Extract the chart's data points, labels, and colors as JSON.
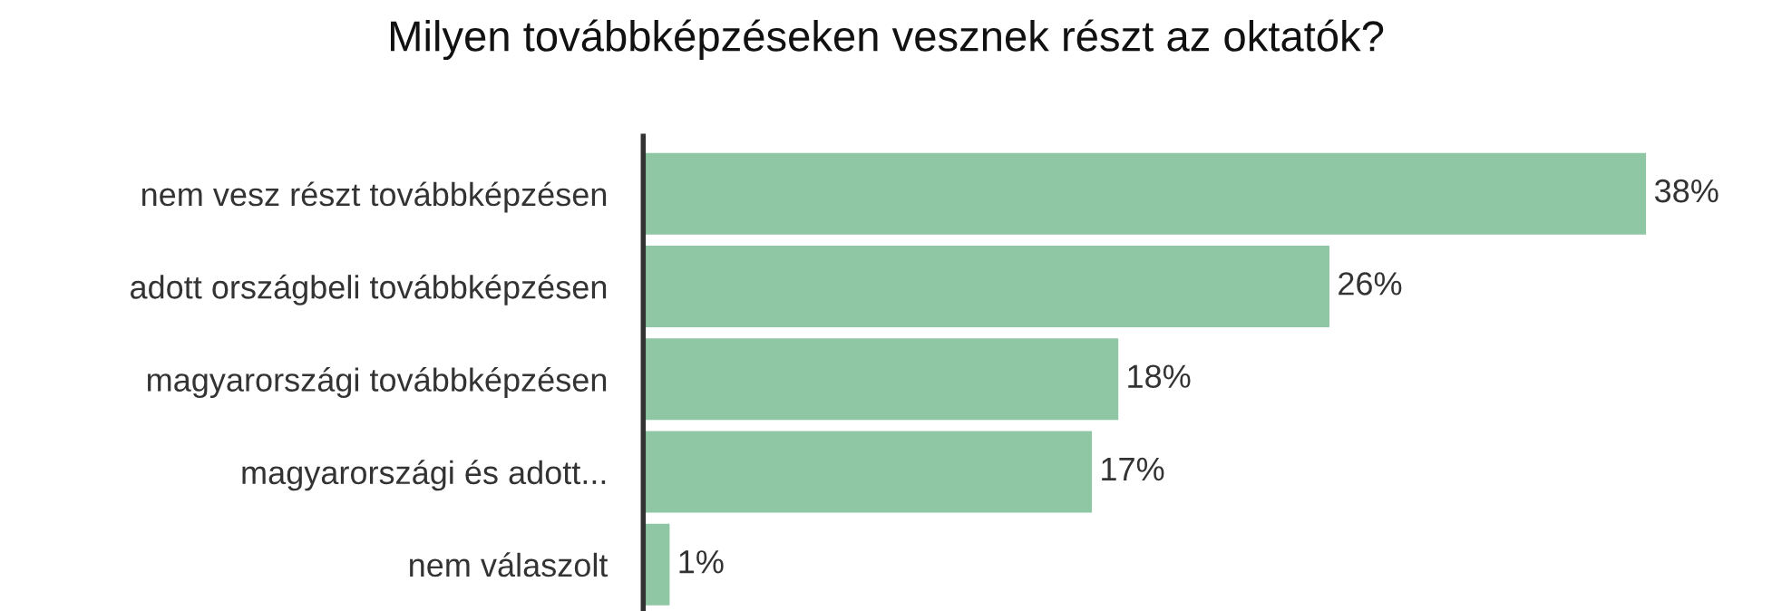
{
  "chart_data": {
    "type": "bar",
    "orientation": "horizontal",
    "title": "Milyen továbbképzéseken vesznek részt az oktatók?",
    "categories": [
      "nem vesz részt továbbképzésen",
      "adott országbeli továbbképzésen",
      "magyarországi továbbképzésen",
      "magyarországi és adott...",
      "nem válaszolt"
    ],
    "values": [
      38,
      26,
      18,
      17,
      1
    ],
    "value_labels": [
      "38%",
      "26%",
      "18%",
      "17%",
      "1%"
    ],
    "color": "#8fc6a4",
    "grid": false,
    "legend": false
  }
}
